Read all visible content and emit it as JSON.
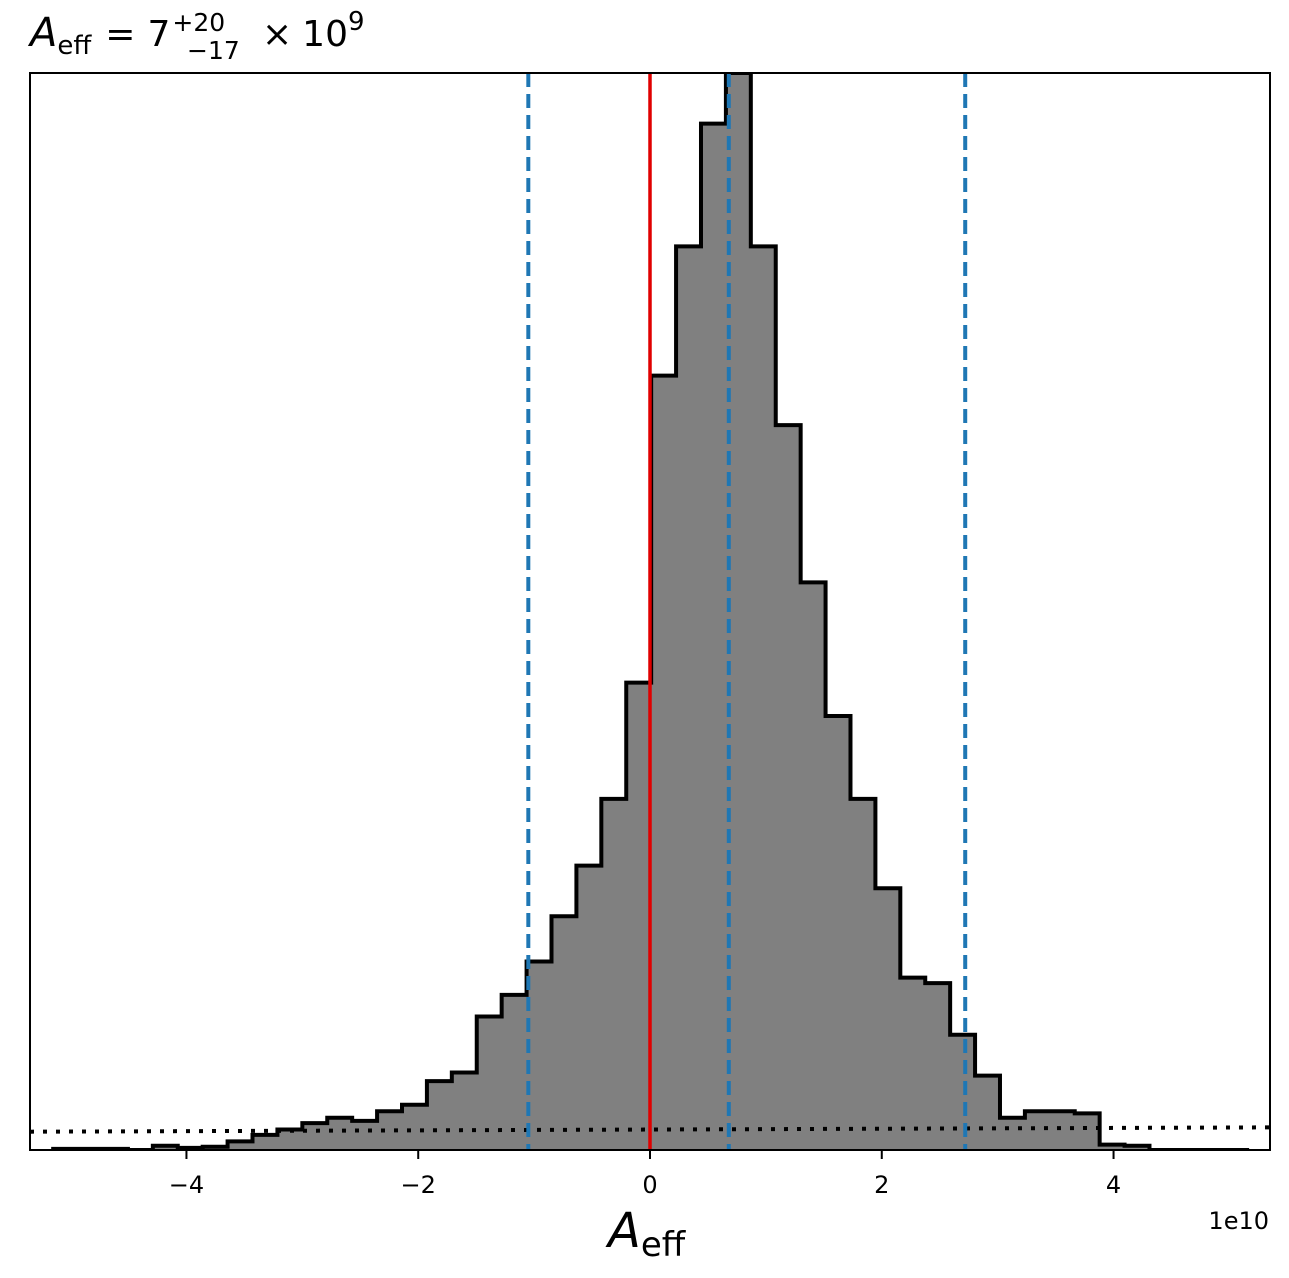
{
  "chart_data": {
    "type": "histogram",
    "title": {
      "symbol": "A",
      "symbol_sub": "eff",
      "equals": "=",
      "median": "7",
      "upper_err": "+20",
      "lower_err": "−17",
      "times": "×",
      "base": "10",
      "exponent": "9"
    },
    "xlabel": {
      "symbol": "A",
      "sub": "eff"
    },
    "offset_text": "1e10",
    "xlim": [
      -5.35,
      5.35
    ],
    "ylim": [
      0,
      1.0
    ],
    "xticks": [
      -4,
      -2,
      0,
      2,
      4
    ],
    "xtick_labels": [
      "−4",
      "−2",
      "0",
      "2",
      "4"
    ],
    "bin_edges": [
      -5.15,
      -4.935,
      -4.72,
      -4.505,
      -4.29,
      -4.075,
      -3.86,
      -3.645,
      -3.43,
      -3.215,
      -3.0,
      -2.785,
      -2.57,
      -2.355,
      -2.14,
      -1.925,
      -1.71,
      -1.495,
      -1.28,
      -1.065,
      -0.85,
      -0.635,
      -0.42,
      -0.205,
      0.01,
      0.225,
      0.44,
      0.655,
      0.87,
      1.085,
      1.3,
      1.515,
      1.73,
      1.945,
      2.16,
      2.375,
      2.59,
      2.805,
      3.02,
      3.235,
      3.45,
      3.665,
      3.88,
      4.095,
      4.31,
      4.525,
      4.74,
      4.955,
      5.17
    ],
    "counts": [
      0.001,
      0.001,
      0.001,
      0.0,
      0.004,
      0.002,
      0.003,
      0.008,
      0.014,
      0.019,
      0.025,
      0.03,
      0.027,
      0.036,
      0.042,
      0.064,
      0.072,
      0.124,
      0.144,
      0.175,
      0.217,
      0.264,
      0.326,
      0.434,
      0.719,
      0.839,
      0.953,
      1.0,
      0.839,
      0.673,
      0.527,
      0.403,
      0.326,
      0.243,
      0.16,
      0.155,
      0.107,
      0.069,
      0.03,
      0.036,
      0.036,
      0.034,
      0.005,
      0.004,
      0.0,
      0.0,
      0.0,
      0.0
    ],
    "vlines": {
      "truth": {
        "x": 0.0,
        "color": "#e00000",
        "style": "solid"
      },
      "quantiles": {
        "x": [
          -1.05,
          0.68,
          2.72
        ],
        "color": "#1f77b4",
        "style": "dashed"
      }
    },
    "prior": {
      "style": "dotted",
      "y_left": 0.017,
      "y_right": 0.021
    },
    "colors": {
      "fill": "#808080",
      "edge": "#000000"
    },
    "grid": false,
    "legend": "none"
  }
}
